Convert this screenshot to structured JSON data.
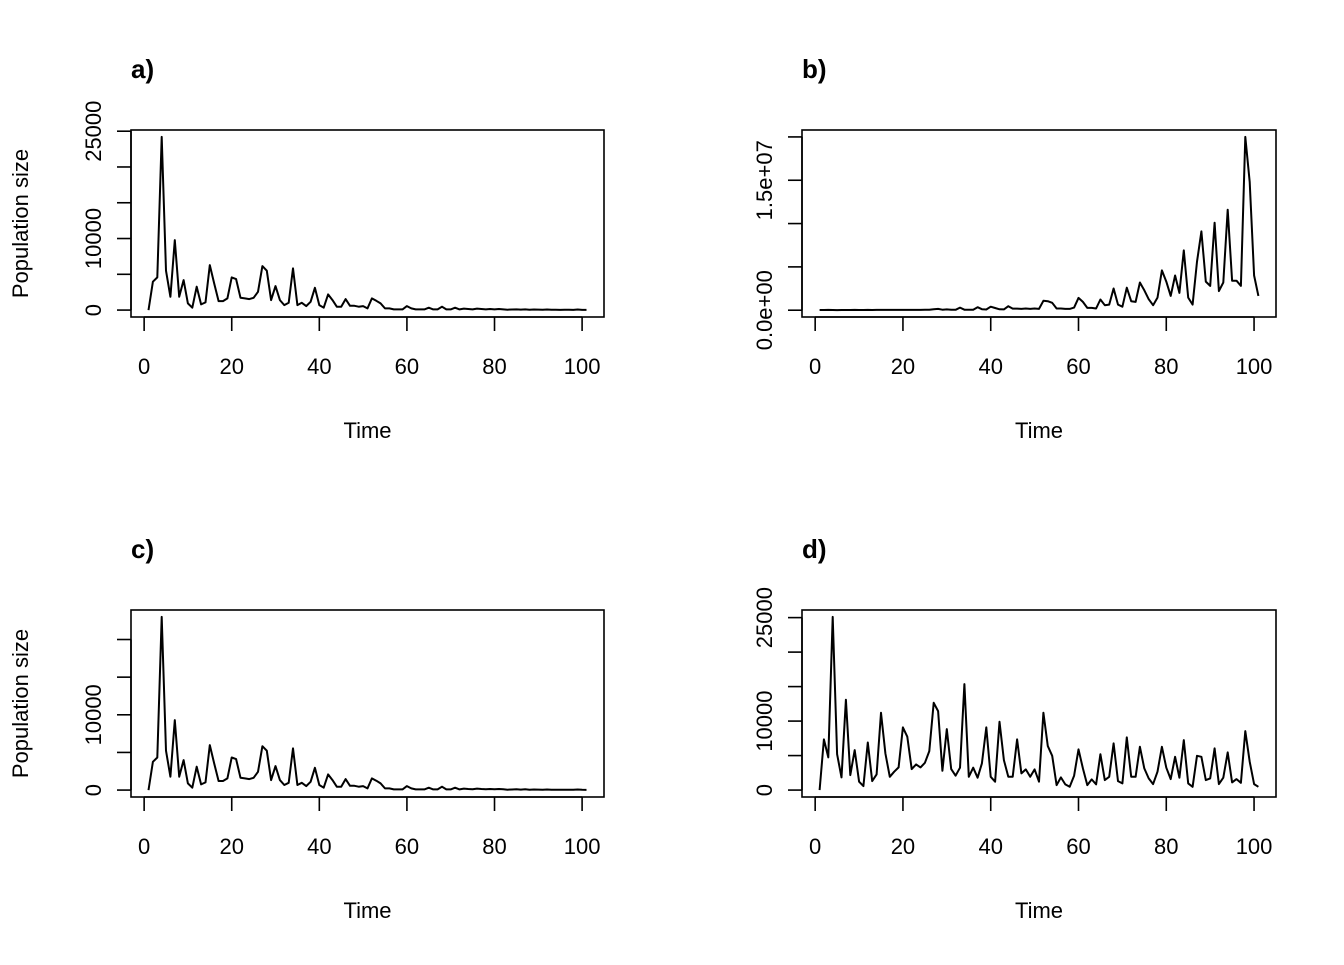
{
  "chart_data": [
    {
      "type": "line",
      "title": "a)",
      "xlabel": "Time",
      "ylabel": "Population size",
      "xlim": [
        1,
        101
      ],
      "xticks": [
        0,
        20,
        40,
        60,
        80,
        100
      ],
      "xtick_labels": [
        "0",
        "20",
        "40",
        "60",
        "80",
        "100"
      ],
      "yticks": [
        0,
        5000,
        10000,
        15000,
        20000,
        25000
      ],
      "ytick_labels": [
        "0",
        "",
        "10000",
        "",
        "",
        "25000"
      ],
      "values": [
        0,
        3960,
        4560,
        24200,
        5500,
        1860,
        9780,
        1860,
        4190,
        930,
        330,
        3260,
        790,
        1070,
        6280,
        3720,
        1260,
        1260,
        1630,
        4560,
        4330,
        1720,
        1630,
        1540,
        1720,
        2560,
        6140,
        5500,
        1400,
        3350,
        1400,
        700,
        1020,
        5820,
        700,
        1020,
        560,
        1160,
        3120,
        700,
        330,
        2190,
        1400,
        470,
        470,
        1540,
        600,
        600,
        470,
        560,
        230,
        1630,
        1300,
        930,
        230,
        230,
        90,
        90,
        90,
        560,
        230,
        90,
        90,
        90,
        330,
        90,
        90,
        470,
        90,
        90,
        330,
        90,
        200,
        150,
        100,
        200,
        150,
        100,
        150,
        100,
        150,
        100,
        50,
        80,
        100,
        60,
        100,
        50,
        80,
        60,
        50,
        80,
        50,
        40,
        30,
        50,
        40,
        30,
        80,
        30,
        20
      ]
    },
    {
      "type": "line",
      "title": "b)",
      "xlabel": "Time",
      "ylabel": "",
      "xlim": [
        1,
        101
      ],
      "xticks": [
        0,
        20,
        40,
        60,
        80,
        100
      ],
      "xtick_labels": [
        "0",
        "20",
        "40",
        "60",
        "80",
        "100"
      ],
      "yticks": [
        0,
        5000000,
        10000000,
        15000000,
        20000000
      ],
      "ytick_labels": [
        "0.0e+00",
        "",
        "",
        "1.5e+07",
        ""
      ],
      "values": [
        20000,
        25000,
        30000,
        20000,
        15000,
        25000,
        20000,
        25000,
        30000,
        20000,
        25000,
        30000,
        25000,
        30000,
        35000,
        30000,
        40000,
        30000,
        35000,
        40000,
        30000,
        40000,
        35000,
        40000,
        45000,
        50000,
        120000,
        150000,
        60000,
        90000,
        60000,
        50000,
        300000,
        60000,
        50000,
        60000,
        350000,
        120000,
        80000,
        400000,
        250000,
        100000,
        90000,
        460000,
        180000,
        180000,
        150000,
        200000,
        150000,
        200000,
        150000,
        1080000,
        1040000,
        850000,
        200000,
        200000,
        150000,
        150000,
        300000,
        1420000,
        960000,
        270000,
        270000,
        200000,
        1230000,
        580000,
        650000,
        2500000,
        650000,
        400000,
        2600000,
        1040000,
        960000,
        3200000,
        2300000,
        1270000,
        580000,
        1460000,
        4600000,
        3300000,
        1650000,
        4000000,
        2000000,
        6900000,
        1460000,
        650000,
        5600000,
        9100000,
        3300000,
        2800000,
        10100000,
        2200000,
        3200000,
        11600000,
        3400000,
        3400000,
        2800000,
        20000000,
        14800000,
        4000000,
        1650000
      ]
    },
    {
      "type": "line",
      "title": "c)",
      "xlabel": "Time",
      "ylabel": "Population size",
      "xlim": [
        1,
        101
      ],
      "xticks": [
        0,
        20,
        40,
        60,
        80,
        100
      ],
      "xtick_labels": [
        "0",
        "20",
        "40",
        "60",
        "80",
        "100"
      ],
      "yticks": [
        0,
        5000,
        10000,
        15000,
        20000
      ],
      "ytick_labels": [
        "0",
        "",
        "10000",
        "",
        ""
      ],
      "values": [
        0,
        3760,
        4330,
        23000,
        5230,
        1770,
        9290,
        1770,
        3980,
        880,
        310,
        3100,
        750,
        1020,
        5970,
        3530,
        1200,
        1200,
        1550,
        4330,
        4110,
        1630,
        1550,
        1460,
        1630,
        2430,
        5830,
        5230,
        1330,
        3180,
        1330,
        670,
        970,
        5530,
        670,
        970,
        530,
        1100,
        2960,
        670,
        310,
        2080,
        1330,
        450,
        450,
        1460,
        570,
        570,
        450,
        530,
        220,
        1550,
        1240,
        880,
        220,
        220,
        90,
        90,
        90,
        530,
        220,
        90,
        90,
        90,
        310,
        90,
        90,
        450,
        90,
        90,
        310,
        90,
        190,
        140,
        100,
        190,
        140,
        100,
        140,
        100,
        140,
        100,
        50,
        80,
        100,
        60,
        100,
        50,
        80,
        60,
        50,
        80,
        50,
        40,
        30,
        50,
        40,
        30,
        80,
        30,
        20
      ]
    },
    {
      "type": "line",
      "title": "d)",
      "xlabel": "Time",
      "ylabel": "",
      "xlim": [
        1,
        101
      ],
      "xticks": [
        0,
        20,
        40,
        60,
        80,
        100
      ],
      "xtick_labels": [
        "0",
        "20",
        "40",
        "60",
        "80",
        "100"
      ],
      "yticks": [
        0,
        5000,
        10000,
        15000,
        20000,
        25000
      ],
      "ytick_labels": [
        "0",
        "",
        "10000",
        "",
        "",
        "25000"
      ],
      "values": [
        0,
        7340,
        4730,
        25100,
        5200,
        1840,
        13100,
        2170,
        5800,
        1210,
        580,
        6900,
        1300,
        2270,
        11200,
        5300,
        1930,
        2660,
        3280,
        9080,
        7730,
        3040,
        3720,
        3280,
        3960,
        5650,
        12650,
        11450,
        2800,
        8840,
        3040,
        2080,
        3240,
        15360,
        1930,
        3240,
        1790,
        3860,
        9080,
        1930,
        1210,
        9900,
        4350,
        1930,
        1930,
        7340,
        2420,
        3000,
        1930,
        3000,
        1210,
        11200,
        6380,
        4970,
        720,
        1840,
        820,
        480,
        2080,
        5890,
        3140,
        720,
        1550,
        820,
        5200,
        1450,
        1930,
        6760,
        1300,
        970,
        7630,
        1930,
        1930,
        6280,
        3140,
        1690,
        870,
        2660,
        6280,
        3240,
        1590,
        4830,
        1790,
        7250,
        970,
        480,
        4970,
        4830,
        1450,
        1690,
        6040,
        870,
        1790,
        5460,
        1110,
        1590,
        1060,
        8550,
        4110,
        870,
        480
      ]
    }
  ]
}
